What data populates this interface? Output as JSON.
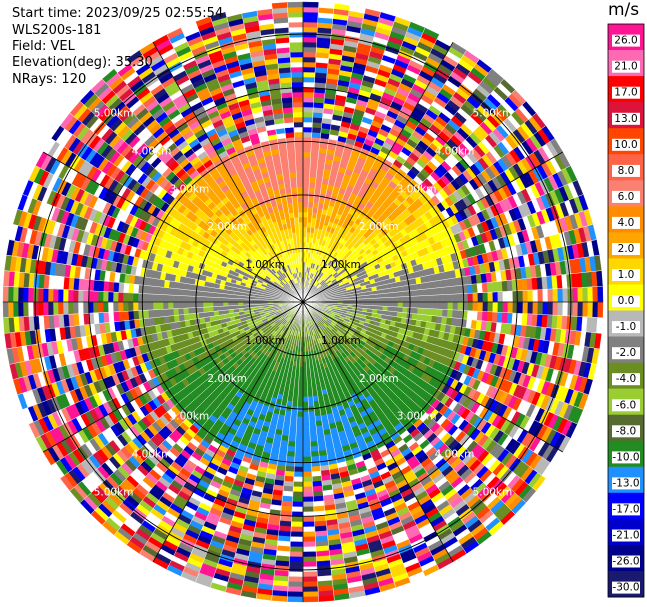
{
  "header": {
    "start_time": "Start time: 2023/09/25 02:55:54",
    "instrument": "WLS200s-181",
    "field": "Field: VEL",
    "elevation": "Elevation(deg): 35.30",
    "nrays": "NRays: 120"
  },
  "chart_data": {
    "type": "heatmap",
    "projection": "polar-ppi",
    "field": "VEL",
    "units": "m/s",
    "n_rays": 120,
    "range_rings_km": [
      1.0,
      2.0,
      3.0,
      4.0,
      5.0
    ],
    "range_ring_labels": [
      "1.00km",
      "2.00km",
      "3.00km",
      "4.00km",
      "5.00km"
    ],
    "max_range_km": 5.6,
    "clean_radius_km": 3.1,
    "spokes_deg": [
      0,
      30,
      60,
      90,
      120,
      150,
      180,
      210,
      240,
      270,
      300,
      330
    ],
    "colorbar": {
      "label": "m/s",
      "tick_labels": [
        "26.0",
        "21.0",
        "17.0",
        "13.0",
        "10.0",
        "8.0",
        "6.0",
        "4.0",
        "2.0",
        "1.0",
        "0.0",
        "-1.0",
        "-2.0",
        "-4.0",
        "-6.0",
        "-8.0",
        "-10.0",
        "-13.0",
        "-17.0",
        "-21.0",
        "-26.0",
        "-30.0"
      ],
      "colors": [
        "#ff1493",
        "#ff69b4",
        "#ff0000",
        "#dc143c",
        "#ff4500",
        "#ff6347",
        "#fa8072",
        "#ff8c00",
        "#ffa500",
        "#ffd700",
        "#ffff00",
        "#b8b8b8",
        "#808080",
        "#6b8e23",
        "#9acd32",
        "#556b2f",
        "#228b22",
        "#1e90ff",
        "#0000ff",
        "#0000cd",
        "#00008b",
        "#191970"
      ]
    },
    "velocity_sectors": [
      {
        "from_deg": 0,
        "to_deg": 180,
        "value": 5,
        "note": "approaching (upper half)"
      },
      {
        "from_deg": 180,
        "to_deg": 360,
        "value": -6,
        "note": "receding (lower half)"
      }
    ]
  }
}
